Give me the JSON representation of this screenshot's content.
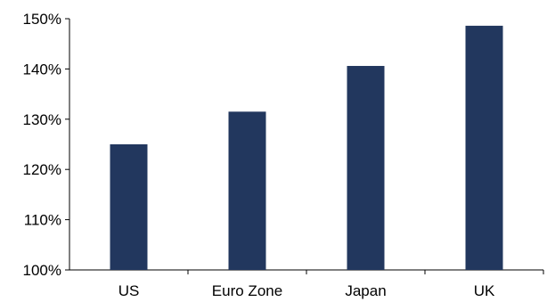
{
  "chart_data": {
    "type": "bar",
    "categories": [
      "US",
      "Euro Zone",
      "Japan",
      "UK"
    ],
    "values": [
      125,
      131.5,
      140.6,
      148.6
    ],
    "title": "",
    "xlabel": "",
    "ylabel": "",
    "ylim": [
      100,
      150
    ],
    "yticks": [
      100,
      110,
      120,
      130,
      140,
      150
    ],
    "ytick_labels": [
      "100%",
      "110%",
      "120%",
      "130%",
      "140%",
      "150%"
    ],
    "bar_color": "#22375e",
    "grid": false,
    "legend": "none"
  }
}
